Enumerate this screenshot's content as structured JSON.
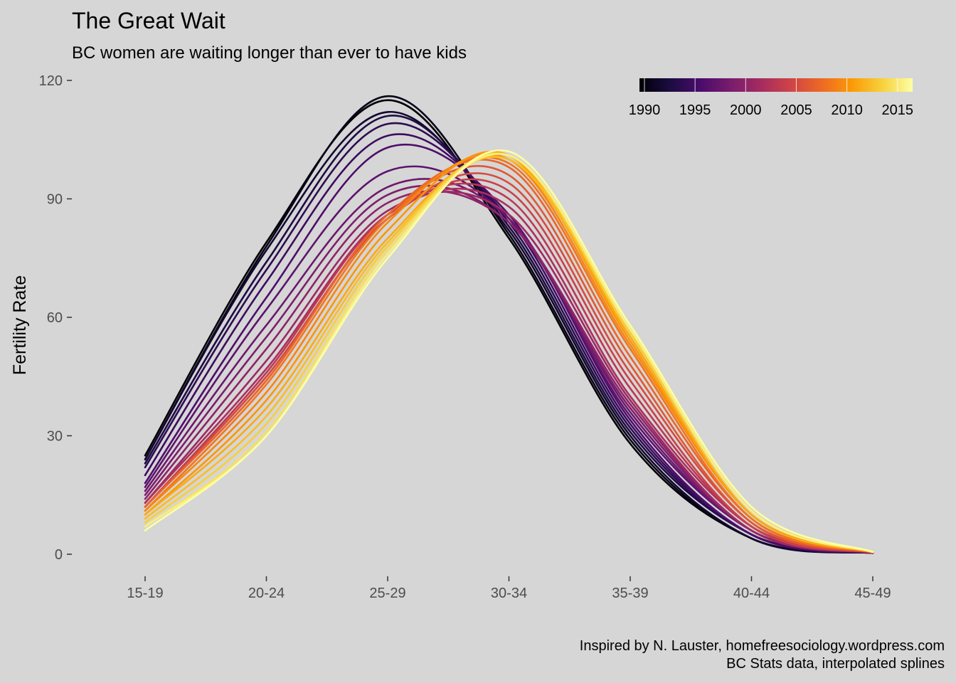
{
  "chart_data": {
    "type": "line",
    "title": "The Great Wait",
    "subtitle": "BC women are waiting longer than ever to have kids",
    "xlabel": "",
    "ylabel": "Fertility Rate",
    "categories": [
      "15-19",
      "20-24",
      "25-29",
      "30-34",
      "35-39",
      "40-44",
      "45-49"
    ],
    "yticks": [
      0,
      30,
      60,
      90,
      120
    ],
    "ylim": [
      -3,
      121
    ],
    "grid": false,
    "colorscale": "inferno",
    "legend": {
      "placement": "top-right",
      "type": "colorbar",
      "range": [
        1990,
        2016
      ],
      "ticks": [
        1990,
        1995,
        2000,
        2005,
        2010,
        2015
      ]
    },
    "series": [
      {
        "year": 1990,
        "values": [
          25,
          79,
          115,
          80,
          28,
          4,
          0.3
        ]
      },
      {
        "year": 1991,
        "values": [
          24,
          78,
          116,
          81,
          29,
          4,
          0.3
        ]
      },
      {
        "year": 1992,
        "values": [
          24,
          77,
          112,
          82,
          30,
          4,
          0.3
        ]
      },
      {
        "year": 1993,
        "values": [
          23,
          74,
          111,
          83,
          31,
          5,
          0.3
        ]
      },
      {
        "year": 1994,
        "values": [
          22,
          72,
          109,
          84,
          32,
          5,
          0.3
        ]
      },
      {
        "year": 1995,
        "values": [
          20,
          69,
          106,
          85,
          33,
          5,
          0.3
        ]
      },
      {
        "year": 1996,
        "values": [
          18,
          65,
          103,
          86,
          34,
          5,
          0.3
        ]
      },
      {
        "year": 1997,
        "values": [
          17,
          62,
          97,
          85,
          35,
          6,
          0.3
        ]
      },
      {
        "year": 1998,
        "values": [
          16,
          58,
          93,
          85,
          36,
          6,
          0.3
        ]
      },
      {
        "year": 1999,
        "values": [
          15,
          55,
          91,
          84,
          37,
          6,
          0.4
        ]
      },
      {
        "year": 2000,
        "values": [
          14,
          52,
          89,
          84,
          38,
          6,
          0.4
        ]
      },
      {
        "year": 2001,
        "values": [
          13,
          49,
          87,
          86,
          39,
          6,
          0.4
        ]
      },
      {
        "year": 2002,
        "values": [
          13,
          47,
          86,
          88,
          40,
          7,
          0.4
        ]
      },
      {
        "year": 2003,
        "values": [
          12,
          46,
          86,
          90,
          42,
          7,
          0.4
        ]
      },
      {
        "year": 2004,
        "values": [
          12,
          45,
          85,
          92,
          44,
          7,
          0.4
        ]
      },
      {
        "year": 2005,
        "values": [
          12,
          45,
          85,
          94,
          46,
          8,
          0.4
        ]
      },
      {
        "year": 2006,
        "values": [
          12,
          44,
          86,
          96,
          48,
          8,
          0.5
        ]
      },
      {
        "year": 2007,
        "values": [
          12,
          44,
          86,
          98,
          50,
          9,
          0.5
        ]
      },
      {
        "year": 2008,
        "values": [
          11,
          43,
          85,
          99,
          52,
          9,
          0.5
        ]
      },
      {
        "year": 2009,
        "values": [
          11,
          41,
          84,
          100,
          53,
          10,
          0.5
        ]
      },
      {
        "year": 2010,
        "values": [
          10,
          39,
          82,
          101,
          54,
          10,
          0.5
        ]
      },
      {
        "year": 2011,
        "values": [
          10,
          37,
          80,
          100,
          55,
          10,
          0.5
        ]
      },
      {
        "year": 2012,
        "values": [
          9,
          35,
          79,
          100,
          56,
          11,
          0.5
        ]
      },
      {
        "year": 2013,
        "values": [
          8,
          33,
          78,
          101,
          56,
          11,
          0.6
        ]
      },
      {
        "year": 2014,
        "values": [
          7,
          31,
          77,
          101,
          57,
          11,
          0.6
        ]
      },
      {
        "year": 2015,
        "values": [
          7,
          30,
          76,
          101,
          57,
          11,
          0.6
        ]
      },
      {
        "year": 2016,
        "values": [
          6,
          30,
          75,
          102,
          58,
          12,
          0.6
        ]
      }
    ],
    "caption": [
      "Inspired by N. Lauster, homefreesociology.wordpress.com",
      "BC Stats data, interpolated splines"
    ]
  }
}
